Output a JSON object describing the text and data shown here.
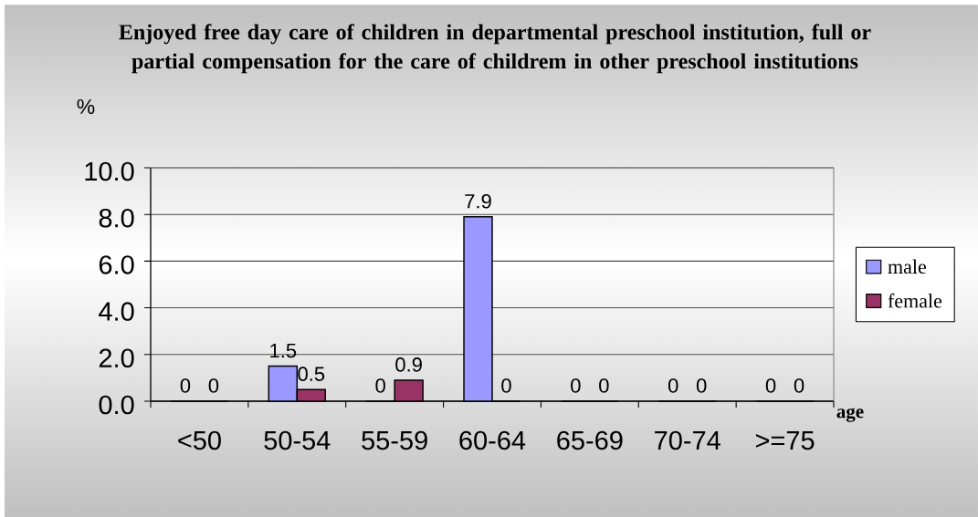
{
  "chart_data": {
    "type": "bar",
    "title": "Enjoyed free day care of children in departmental preschool institution, full or partial compensation for the care of childrem in other preschool institutions",
    "xlabel": "age",
    "ylabel": "%",
    "categories": [
      "<50",
      "50-54",
      "55-59",
      "60-64",
      "65-69",
      "70-74",
      ">=75"
    ],
    "series": [
      {
        "name": "male",
        "color": "#9999ff",
        "values": [
          0,
          1.5,
          0,
          7.9,
          0,
          0,
          0
        ],
        "value_labels": [
          "0",
          "1.5",
          "0",
          "7.9",
          "0",
          "0",
          "0"
        ]
      },
      {
        "name": "female",
        "color": "#993366",
        "values": [
          0,
          0.5,
          0.9,
          0,
          0,
          0,
          0
        ],
        "value_labels": [
          "0",
          "0.5",
          "0.9",
          "0",
          "0",
          "0",
          "0"
        ]
      }
    ],
    "ylim": [
      0,
      10
    ],
    "yticks": [
      {
        "value": 0,
        "label": "0.0"
      },
      {
        "value": 2,
        "label": "2.0"
      },
      {
        "value": 4,
        "label": "4.0"
      },
      {
        "value": 6,
        "label": "6.0"
      },
      {
        "value": 8,
        "label": "8.0"
      },
      {
        "value": 10,
        "label": "10.0"
      }
    ],
    "grid": "y",
    "legend": "right"
  }
}
